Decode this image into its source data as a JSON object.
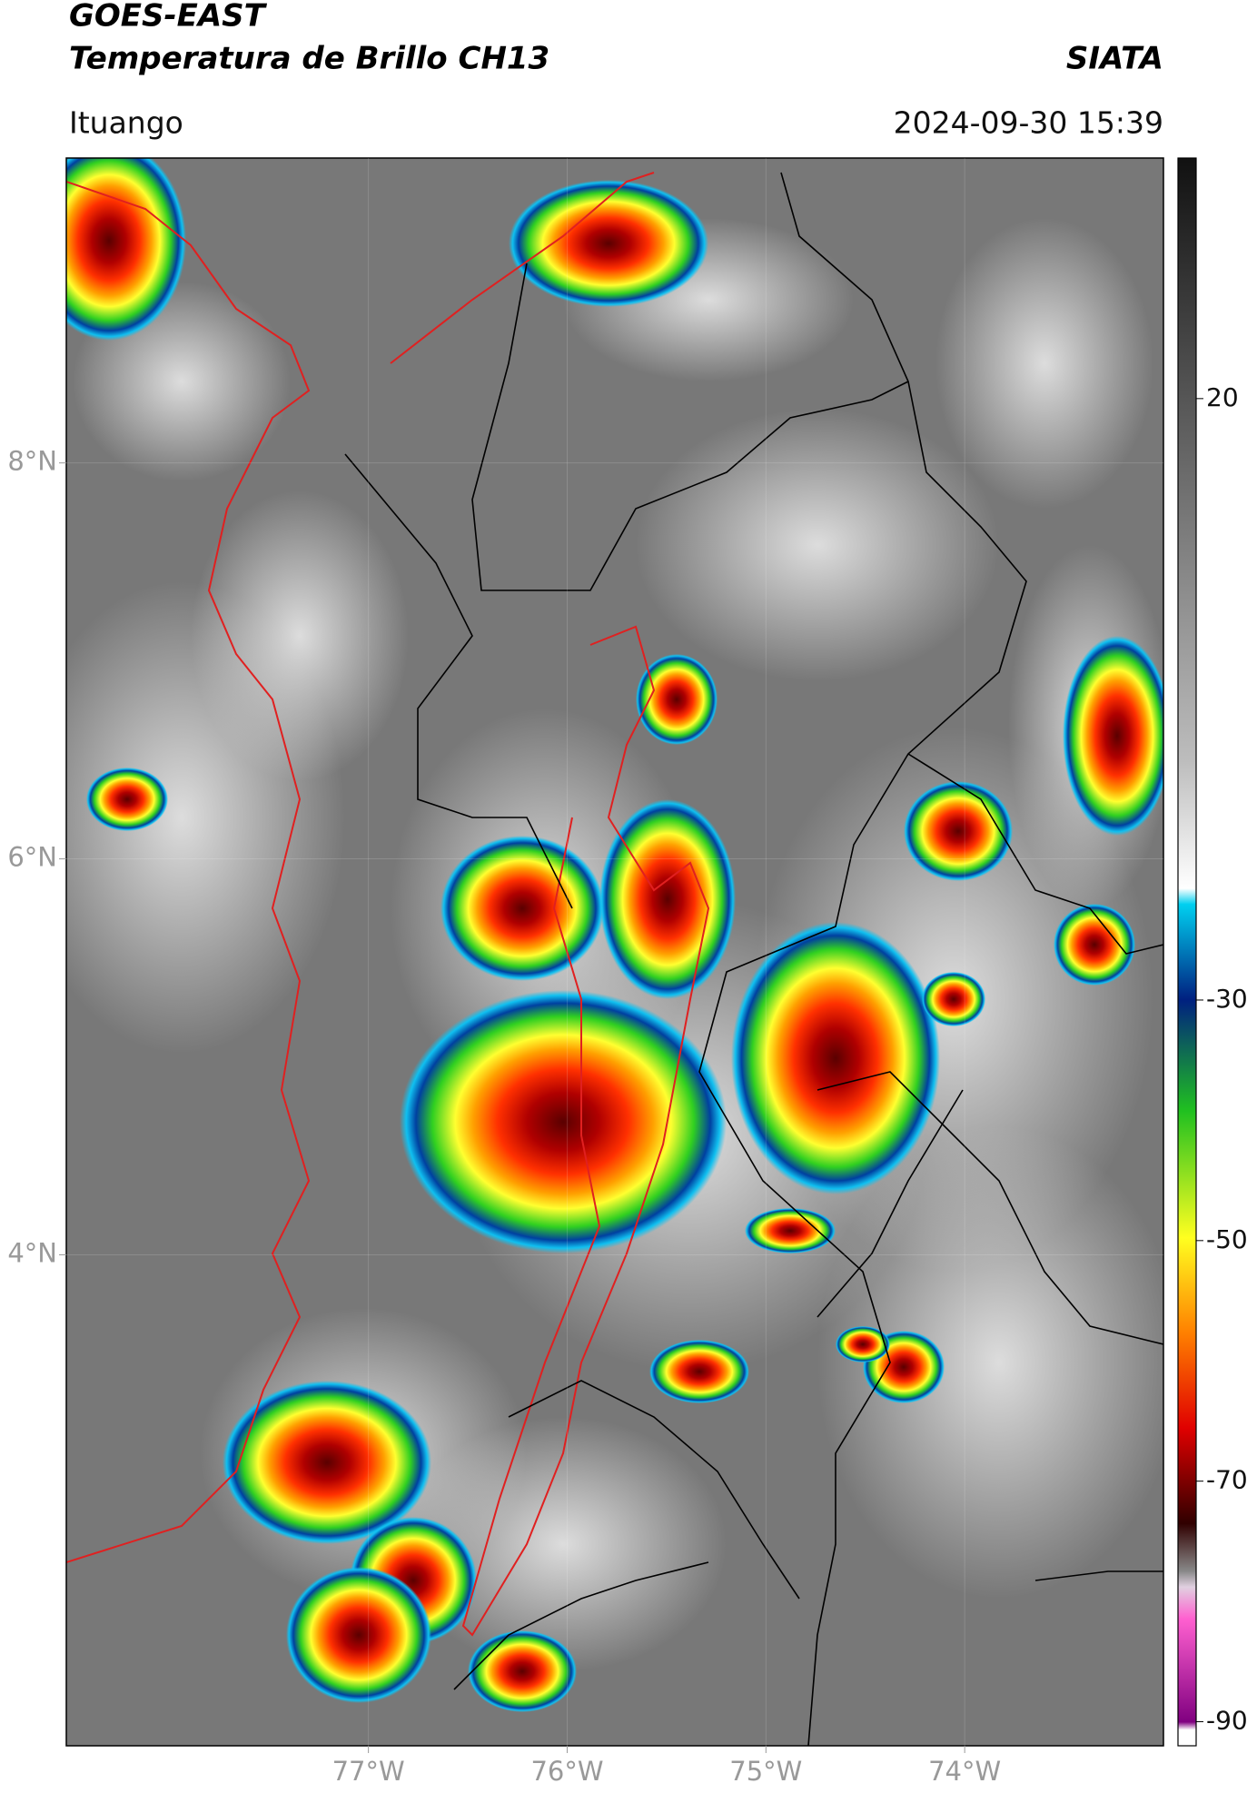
{
  "header": {
    "title": "GOES-EAST",
    "subtitle": "Temperatura de Brillo CH13",
    "source": "SIATA",
    "location": "Ituango",
    "datetime": "2024-09-30 15:39"
  },
  "map": {
    "xlim": [
      -78.52,
      -73.0
    ],
    "ylim": [
      1.52,
      9.54
    ],
    "xticks": [
      {
        "value": -77,
        "label": "77°W"
      },
      {
        "value": -76,
        "label": "76°W"
      },
      {
        "value": -75,
        "label": "75°W"
      },
      {
        "value": -74,
        "label": "74°W"
      }
    ],
    "yticks": [
      {
        "value": 8,
        "label": "8°N"
      },
      {
        "value": 6,
        "label": "6°N"
      },
      {
        "value": 4,
        "label": "4°N"
      }
    ]
  },
  "colorbar": {
    "lim": [
      -92,
      40
    ],
    "ticks": [
      20,
      -30,
      -50,
      -70,
      -90
    ]
  }
}
